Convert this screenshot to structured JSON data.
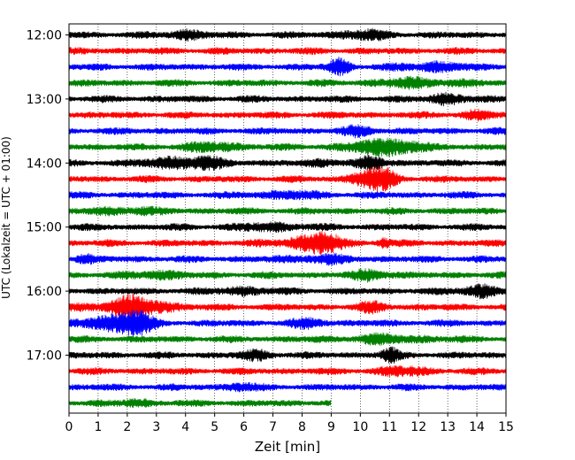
{
  "chart_data": {
    "type": "line",
    "title": "",
    "xlabel": "Zeit  [min]",
    "ylabel": "UTC (Lokalzeit = UTC + 01:00)",
    "xlim": [
      0,
      15
    ],
    "x_ticks": [
      "0",
      "1",
      "2",
      "3",
      "4",
      "5",
      "6",
      "7",
      "8",
      "9",
      "10",
      "11",
      "12",
      "13",
      "14",
      "15"
    ],
    "y_ticks": [
      "12:00",
      "13:00",
      "14:00",
      "15:00",
      "16:00",
      "17:00"
    ],
    "trace_colors": [
      "#000000",
      "#ff0000",
      "#0000ff",
      "#008000"
    ],
    "grid": "vertical dotted",
    "traces": [
      {
        "start": "12:00",
        "duration_min": 15,
        "color": "#000000",
        "bursts": [
          [
            4.0,
            0.6,
            1.3
          ],
          [
            10.0,
            0.8,
            1.2
          ]
        ]
      },
      {
        "start": "12:15",
        "duration_min": 15,
        "color": "#ff0000",
        "bursts": []
      },
      {
        "start": "12:30",
        "duration_min": 15,
        "color": "#0000ff",
        "bursts": [
          [
            9.3,
            0.4,
            2.2
          ],
          [
            12.5,
            1.0,
            1.2
          ]
        ]
      },
      {
        "start": "12:45",
        "duration_min": 15,
        "color": "#008000",
        "bursts": [
          [
            12.0,
            1.5,
            1.0
          ]
        ]
      },
      {
        "start": "13:00",
        "duration_min": 15,
        "color": "#000000",
        "bursts": [
          [
            13.0,
            0.6,
            1.6
          ]
        ]
      },
      {
        "start": "13:15",
        "duration_min": 15,
        "color": "#ff0000",
        "bursts": [
          [
            14.0,
            0.5,
            1.0
          ]
        ]
      },
      {
        "start": "13:30",
        "duration_min": 15,
        "color": "#0000ff",
        "bursts": [
          [
            10.0,
            0.6,
            1.0
          ]
        ]
      },
      {
        "start": "13:45",
        "duration_min": 15,
        "color": "#008000",
        "bursts": [
          [
            5.0,
            1.0,
            1.0
          ],
          [
            10.5,
            1.0,
            1.6
          ],
          [
            11.5,
            0.6,
            1.3
          ]
        ]
      },
      {
        "start": "14:00",
        "duration_min": 15,
        "color": "#000000",
        "bursts": [
          [
            4.0,
            1.2,
            1.9
          ],
          [
            8.8,
            0.5,
            1.0
          ],
          [
            10.5,
            0.6,
            1.4
          ]
        ]
      },
      {
        "start": "14:15",
        "duration_min": 15,
        "color": "#ff0000",
        "bursts": [
          [
            10.2,
            0.6,
            2.2
          ],
          [
            11.0,
            0.5,
            1.2
          ]
        ]
      },
      {
        "start": "14:30",
        "duration_min": 15,
        "color": "#0000ff",
        "bursts": [
          [
            7.5,
            1.0,
            0.9
          ]
        ]
      },
      {
        "start": "14:45",
        "duration_min": 15,
        "color": "#008000",
        "bursts": [
          [
            2.0,
            1.0,
            0.9
          ]
        ]
      },
      {
        "start": "15:00",
        "duration_min": 15,
        "color": "#000000",
        "bursts": [
          [
            7.0,
            1.0,
            1.0
          ]
        ]
      },
      {
        "start": "15:15",
        "duration_min": 15,
        "color": "#ff0000",
        "bursts": [
          [
            8.0,
            0.8,
            2.0
          ],
          [
            9.0,
            0.5,
            1.6
          ],
          [
            10.8,
            0.2,
            1.6
          ]
        ]
      },
      {
        "start": "15:30",
        "duration_min": 15,
        "color": "#0000ff",
        "bursts": [
          [
            0.5,
            0.3,
            1.3
          ],
          [
            8.5,
            1.0,
            1.0
          ]
        ]
      },
      {
        "start": "15:45",
        "duration_min": 15,
        "color": "#008000",
        "bursts": [
          [
            3.0,
            0.8,
            1.2
          ],
          [
            10.5,
            0.6,
            1.6
          ]
        ]
      },
      {
        "start": "16:00",
        "duration_min": 15,
        "color": "#000000",
        "bursts": [
          [
            6.0,
            0.8,
            1.0
          ],
          [
            14.0,
            0.6,
            1.8
          ]
        ]
      },
      {
        "start": "16:15",
        "duration_min": 15,
        "color": "#ff0000",
        "bursts": [
          [
            2.2,
            1.3,
            2.6
          ],
          [
            10.5,
            0.5,
            1.0
          ]
        ]
      },
      {
        "start": "16:30",
        "duration_min": 15,
        "color": "#0000ff",
        "bursts": [
          [
            1.3,
            1.0,
            1.8
          ],
          [
            2.3,
            0.6,
            2.0
          ],
          [
            8.3,
            0.6,
            1.0
          ]
        ]
      },
      {
        "start": "16:45",
        "duration_min": 15,
        "color": "#008000",
        "bursts": [
          [
            11.0,
            1.5,
            0.9
          ]
        ]
      },
      {
        "start": "17:00",
        "duration_min": 15,
        "color": "#000000",
        "bursts": [
          [
            6.5,
            0.6,
            1.0
          ],
          [
            11.0,
            0.3,
            1.7
          ]
        ]
      },
      {
        "start": "17:15",
        "duration_min": 15,
        "color": "#ff0000",
        "bursts": [
          [
            11.5,
            0.8,
            1.0
          ]
        ]
      },
      {
        "start": "17:30",
        "duration_min": 15,
        "color": "#0000ff",
        "bursts": [
          [
            5.8,
            0.5,
            1.0
          ]
        ]
      },
      {
        "start": "17:45",
        "duration_min": 9,
        "color": "#008000",
        "bursts": [
          [
            2.3,
            0.5,
            0.9
          ]
        ]
      }
    ]
  }
}
